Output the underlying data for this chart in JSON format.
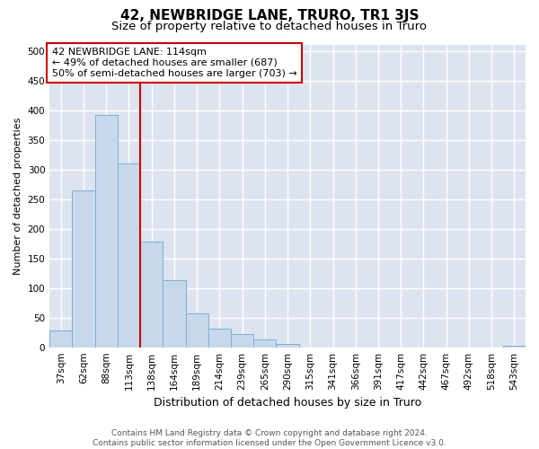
{
  "title": "42, NEWBRIDGE LANE, TRURO, TR1 3JS",
  "subtitle": "Size of property relative to detached houses in Truro",
  "xlabel": "Distribution of detached houses by size in Truro",
  "ylabel": "Number of detached properties",
  "categories": [
    "37sqm",
    "62sqm",
    "88sqm",
    "113sqm",
    "138sqm",
    "164sqm",
    "189sqm",
    "214sqm",
    "239sqm",
    "265sqm",
    "290sqm",
    "315sqm",
    "341sqm",
    "366sqm",
    "391sqm",
    "417sqm",
    "442sqm",
    "467sqm",
    "492sqm",
    "518sqm",
    "543sqm"
  ],
  "values": [
    28,
    265,
    392,
    310,
    178,
    113,
    57,
    32,
    22,
    13,
    6,
    0,
    0,
    0,
    0,
    0,
    0,
    0,
    0,
    0,
    3
  ],
  "bar_color": "#c8d8ec",
  "bar_edge_color": "#7aafd4",
  "background_color": "#dde4f0",
  "grid_color": "#ffffff",
  "annotation_text_line1": "42 NEWBRIDGE LANE: 114sqm",
  "annotation_text_line2": "← 49% of detached houses are smaller (687)",
  "annotation_text_line3": "50% of semi-detached houses are larger (703) →",
  "annotation_box_facecolor": "#ffffff",
  "annotation_box_edgecolor": "#cc0000",
  "red_line_color": "#cc0000",
  "red_line_x": 3.5,
  "ylim": [
    0,
    510
  ],
  "yticks": [
    0,
    50,
    100,
    150,
    200,
    250,
    300,
    350,
    400,
    450,
    500
  ],
  "title_fontsize": 11,
  "subtitle_fontsize": 9.5,
  "xlabel_fontsize": 9,
  "ylabel_fontsize": 8,
  "tick_fontsize": 7.5,
  "annotation_fontsize": 8,
  "footer_fontsize": 6.5,
  "footer_line1": "Contains HM Land Registry data © Crown copyright and database right 2024.",
  "footer_line2": "Contains public sector information licensed under the Open Government Licence v3.0."
}
